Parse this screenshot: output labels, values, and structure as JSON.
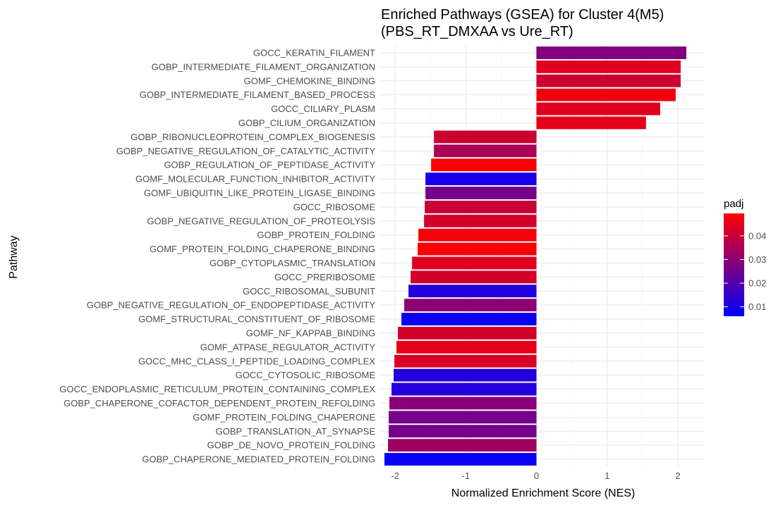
{
  "chart_data": {
    "type": "bar",
    "orientation": "horizontal",
    "title_lines": [
      "Enriched Pathways (GSEA) for Cluster 4(M5)",
      "(PBS_RT_DMXAA vs Ure_RT)"
    ],
    "xlabel": "Normalized Enrichment Score (NES)",
    "ylabel": "Pathway",
    "xlim": [
      -2.22,
      2.37
    ],
    "xticks": [
      -2,
      -1,
      0,
      1,
      2
    ],
    "xtick_labels": [
      "-2",
      "-1",
      "0",
      "1",
      "2"
    ],
    "grid": true,
    "legend": {
      "title": "padj",
      "position": "right",
      "range": [
        0.006,
        0.0495
      ],
      "ticks": [
        0.01,
        0.02,
        0.03,
        0.04
      ],
      "tick_labels": [
        "0.01",
        "0.02",
        "0.03",
        "0.04"
      ],
      "low_color": "#0000ff",
      "high_color": "#ff0000"
    },
    "categories": [
      "GOCC_KERATIN_FILAMENT",
      "GOBP_INTERMEDIATE_FILAMENT_ORGANIZATION",
      "GOMF_CHEMOKINE_BINDING",
      "GOBP_INTERMEDIATE_FILAMENT_BASED_PROCESS",
      "GOCC_CILIARY_PLASM",
      "GOBP_CILIUM_ORGANIZATION",
      "GOBP_RIBONUCLEOPROTEIN_COMPLEX_BIOGENESIS",
      "GOBP_NEGATIVE_REGULATION_OF_CATALYTIC_ACTIVITY",
      "GOBP_REGULATION_OF_PEPTIDASE_ACTIVITY",
      "GOMF_MOLECULAR_FUNCTION_INHIBITOR_ACTIVITY",
      "GOMF_UBIQUITIN_LIKE_PROTEIN_LIGASE_BINDING",
      "GOCC_RIBOSOME",
      "GOBP_NEGATIVE_REGULATION_OF_PROTEOLYSIS",
      "GOBP_PROTEIN_FOLDING",
      "GOMF_PROTEIN_FOLDING_CHAPERONE_BINDING",
      "GOBP_CYTOPLASMIC_TRANSLATION",
      "GOCC_PRERIBOSOME",
      "GOCC_RIBOSOMAL_SUBUNIT",
      "GOBP_NEGATIVE_REGULATION_OF_ENDOPEPTIDASE_ACTIVITY",
      "GOMF_STRUCTURAL_CONSTITUENT_OF_RIBOSOME",
      "GOMF_NF_KAPPAB_BINDING",
      "GOMF_ATPASE_REGULATOR_ACTIVITY",
      "GOCC_MHC_CLASS_I_PEPTIDE_LOADING_COMPLEX",
      "GOCC_CYTOSOLIC_RIBOSOME",
      "GOCC_ENDOPLASMIC_RETICULUM_PROTEIN_CONTAINING_COMPLEX",
      "GOBP_CHAPERONE_COFACTOR_DEPENDENT_PROTEIN_REFOLDING",
      "GOMF_PROTEIN_FOLDING_CHAPERONE",
      "GOBP_TRANSLATION_AT_SYNAPSE",
      "GOBP_DE_NOVO_PROTEIN_FOLDING",
      "GOBP_CHAPERONE_MEDIATED_PROTEIN_FOLDING"
    ],
    "values": [
      2.12,
      2.04,
      2.04,
      1.97,
      1.75,
      1.55,
      -1.45,
      -1.45,
      -1.49,
      -1.57,
      -1.57,
      -1.58,
      -1.59,
      -1.67,
      -1.68,
      -1.76,
      -1.78,
      -1.81,
      -1.87,
      -1.91,
      -1.96,
      -1.98,
      -2.01,
      -2.02,
      -2.05,
      -2.08,
      -2.09,
      -2.09,
      -2.1,
      -2.15
    ],
    "padj": [
      0.028,
      0.044,
      0.041,
      0.047,
      0.044,
      0.045,
      0.041,
      0.035,
      0.049,
      0.01,
      0.026,
      0.04,
      0.042,
      0.048,
      0.049,
      0.044,
      0.042,
      0.012,
      0.03,
      0.008,
      0.042,
      0.045,
      0.043,
      0.012,
      0.012,
      0.029,
      0.026,
      0.026,
      0.033,
      0.007
    ]
  }
}
